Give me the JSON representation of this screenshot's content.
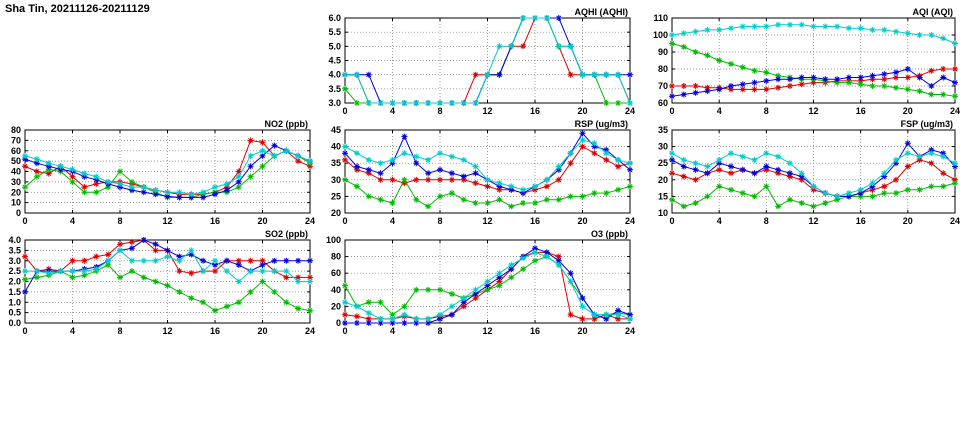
{
  "page": {
    "title": "Sha Tin, 20211126-20211129"
  },
  "colors": {
    "red": "#dd0000",
    "green": "#00bb00",
    "blue": "#0000dd",
    "cyan": "#00cccc"
  },
  "chart_data": [
    {
      "id": "aqhi",
      "type": "line",
      "title": "AQHI (AQHI)",
      "xlim": [
        0,
        24
      ],
      "ylim": [
        3.0,
        6.0
      ],
      "x_ticks": [
        "0",
        "4",
        "8",
        "12",
        "16",
        "20",
        "24"
      ],
      "y_ticks": [
        "3.0",
        "3.5",
        "4.0",
        "4.5",
        "5.0",
        "5.5",
        "6.0"
      ],
      "x": [
        0,
        1,
        2,
        3,
        4,
        5,
        6,
        7,
        8,
        9,
        10,
        11,
        12,
        13,
        14,
        15,
        16,
        17,
        18,
        19,
        20,
        21,
        22,
        23,
        24
      ],
      "series": [
        {
          "name": "red",
          "values": [
            4,
            4,
            3,
            3,
            3,
            3,
            3,
            3,
            3,
            3,
            3,
            4,
            4,
            4,
            5,
            5,
            6,
            6,
            5,
            4,
            4,
            4,
            4,
            4,
            3
          ]
        },
        {
          "name": "green",
          "values": [
            3.5,
            3,
            3,
            3,
            3,
            3,
            3,
            3,
            3,
            3,
            3,
            3,
            4,
            4,
            5,
            6,
            6,
            6,
            5,
            5,
            4,
            4,
            3,
            3,
            3
          ]
        },
        {
          "name": "blue",
          "values": [
            4,
            4,
            4,
            3,
            3,
            3,
            3,
            3,
            3,
            3,
            3,
            3,
            4,
            4,
            5,
            6,
            6,
            6,
            6,
            5,
            4,
            4,
            4,
            4,
            4
          ]
        },
        {
          "name": "cyan",
          "values": [
            4,
            4,
            3,
            3,
            3,
            3,
            3,
            3,
            3,
            3,
            3,
            3,
            4,
            5,
            5,
            6,
            6,
            6,
            5,
            5,
            4,
            4,
            4,
            4,
            3
          ]
        }
      ]
    },
    {
      "id": "aqi",
      "type": "line",
      "title": "AQI (AQI)",
      "xlim": [
        0,
        24
      ],
      "ylim": [
        60,
        110
      ],
      "x_ticks": [
        "0",
        "4",
        "8",
        "12",
        "16",
        "20",
        "24"
      ],
      "y_ticks": [
        "60",
        "70",
        "80",
        "90",
        "100",
        "110"
      ],
      "x": [
        0,
        1,
        2,
        3,
        4,
        5,
        6,
        7,
        8,
        9,
        10,
        11,
        12,
        13,
        14,
        15,
        16,
        17,
        18,
        19,
        20,
        21,
        22,
        23,
        24
      ],
      "series": [
        {
          "name": "red",
          "values": [
            70,
            70,
            70,
            69,
            69,
            68,
            68,
            68,
            68,
            69,
            70,
            71,
            72,
            72,
            73,
            73,
            73,
            74,
            74,
            75,
            75,
            76,
            79,
            80,
            80
          ]
        },
        {
          "name": "green",
          "values": [
            95,
            93,
            90,
            88,
            85,
            83,
            81,
            79,
            78,
            76,
            75,
            74,
            74,
            73,
            72,
            72,
            71,
            70,
            70,
            69,
            68,
            67,
            65,
            65,
            64
          ]
        },
        {
          "name": "blue",
          "values": [
            64,
            65,
            66,
            67,
            68,
            70,
            71,
            72,
            73,
            74,
            74,
            75,
            75,
            74,
            74,
            75,
            75,
            76,
            77,
            78,
            80,
            75,
            70,
            75,
            72
          ]
        },
        {
          "name": "cyan",
          "values": [
            100,
            101,
            102,
            103,
            103,
            104,
            105,
            105,
            105,
            106,
            106,
            106,
            105,
            105,
            105,
            104,
            104,
            103,
            103,
            102,
            101,
            100,
            100,
            98,
            95
          ]
        }
      ]
    },
    {
      "id": "no2",
      "type": "line",
      "title": "NO2 (ppb)",
      "xlim": [
        0,
        24
      ],
      "ylim": [
        0,
        80
      ],
      "x_ticks": [
        "0",
        "4",
        "8",
        "12",
        "16",
        "20",
        "24"
      ],
      "y_ticks": [
        "0",
        "10",
        "20",
        "30",
        "40",
        "50",
        "60",
        "70",
        "80"
      ],
      "x": [
        0,
        1,
        2,
        3,
        4,
        5,
        6,
        7,
        8,
        9,
        10,
        11,
        12,
        13,
        14,
        15,
        16,
        17,
        18,
        19,
        20,
        21,
        22,
        23,
        24
      ],
      "series": [
        {
          "name": "red",
          "values": [
            45,
            40,
            38,
            45,
            35,
            25,
            28,
            30,
            30,
            28,
            25,
            22,
            20,
            18,
            18,
            18,
            20,
            25,
            40,
            70,
            68,
            55,
            60,
            50,
            45
          ]
        },
        {
          "name": "green",
          "values": [
            25,
            35,
            42,
            40,
            30,
            20,
            20,
            25,
            40,
            30,
            25,
            20,
            15,
            15,
            15,
            18,
            20,
            20,
            25,
            35,
            45,
            55,
            60,
            55,
            48
          ]
        },
        {
          "name": "blue",
          "values": [
            52,
            48,
            45,
            42,
            40,
            35,
            32,
            28,
            25,
            22,
            20,
            18,
            16,
            15,
            15,
            15,
            18,
            22,
            30,
            45,
            55,
            65,
            60,
            55,
            50
          ]
        },
        {
          "name": "cyan",
          "values": [
            55,
            52,
            48,
            45,
            42,
            38,
            35,
            30,
            28,
            25,
            25,
            22,
            20,
            20,
            18,
            20,
            25,
            28,
            35,
            55,
            60,
            55,
            60,
            55,
            50
          ]
        }
      ]
    },
    {
      "id": "rsp",
      "type": "line",
      "title": "RSP (ug/m3)",
      "xlim": [
        0,
        24
      ],
      "ylim": [
        20,
        45
      ],
      "x_ticks": [
        "0",
        "4",
        "8",
        "12",
        "16",
        "20",
        "24"
      ],
      "y_ticks": [
        "20",
        "25",
        "30",
        "35",
        "40",
        "45"
      ],
      "x": [
        0,
        1,
        2,
        3,
        4,
        5,
        6,
        7,
        8,
        9,
        10,
        11,
        12,
        13,
        14,
        15,
        16,
        17,
        18,
        19,
        20,
        21,
        22,
        23,
        24
      ],
      "series": [
        {
          "name": "red",
          "values": [
            36,
            33,
            32,
            30,
            30,
            29,
            30,
            30,
            30,
            30,
            30,
            29,
            28,
            27,
            27,
            26,
            27,
            28,
            30,
            35,
            40,
            38,
            36,
            34,
            35
          ]
        },
        {
          "name": "green",
          "values": [
            30,
            28,
            25,
            24,
            23,
            30,
            24,
            22,
            25,
            26,
            24,
            23,
            23,
            24,
            22,
            23,
            23,
            24,
            24,
            25,
            25,
            26,
            26,
            27,
            28
          ]
        },
        {
          "name": "blue",
          "values": [
            38,
            34,
            33,
            32,
            35,
            43,
            35,
            32,
            33,
            32,
            31,
            32,
            30,
            28,
            27,
            26,
            28,
            30,
            33,
            38,
            44,
            40,
            39,
            36,
            33
          ]
        },
        {
          "name": "cyan",
          "values": [
            40,
            38,
            36,
            35,
            36,
            38,
            37,
            36,
            38,
            37,
            36,
            34,
            30,
            29,
            28,
            27,
            28,
            30,
            34,
            38,
            42,
            41,
            38,
            36,
            35
          ]
        }
      ]
    },
    {
      "id": "fsp",
      "type": "line",
      "title": "FSP (ug/m3)",
      "xlim": [
        0,
        24
      ],
      "ylim": [
        10,
        35
      ],
      "x_ticks": [
        "0",
        "4",
        "8",
        "12",
        "16",
        "20",
        "24"
      ],
      "y_ticks": [
        "10",
        "15",
        "20",
        "25",
        "30",
        "35"
      ],
      "x": [
        0,
        1,
        2,
        3,
        4,
        5,
        6,
        7,
        8,
        9,
        10,
        11,
        12,
        13,
        14,
        15,
        16,
        17,
        18,
        19,
        20,
        21,
        22,
        23,
        24
      ],
      "series": [
        {
          "name": "red",
          "values": [
            22,
            21,
            20,
            22,
            23,
            22,
            23,
            22,
            23,
            22,
            21,
            20,
            17,
            16,
            15,
            15,
            16,
            17,
            18,
            20,
            24,
            26,
            25,
            22,
            20
          ]
        },
        {
          "name": "green",
          "values": [
            14,
            12,
            13,
            15,
            18,
            17,
            16,
            15,
            18,
            12,
            14,
            13,
            12,
            13,
            14,
            15,
            15,
            15,
            16,
            16,
            17,
            17,
            18,
            18,
            19
          ]
        },
        {
          "name": "blue",
          "values": [
            26,
            24,
            23,
            22,
            25,
            24,
            23,
            22,
            24,
            23,
            22,
            21,
            18,
            16,
            15,
            15,
            16,
            18,
            21,
            25,
            31,
            27,
            29,
            28,
            24
          ]
        },
        {
          "name": "cyan",
          "values": [
            28,
            26,
            25,
            24,
            26,
            28,
            27,
            26,
            28,
            27,
            25,
            22,
            18,
            16,
            15,
            16,
            17,
            19,
            22,
            26,
            28,
            27,
            28,
            27,
            25
          ]
        }
      ]
    },
    {
      "id": "so2",
      "type": "line",
      "title": "SO2 (ppb)",
      "xlim": [
        0,
        24
      ],
      "ylim": [
        0.0,
        4.0
      ],
      "x_ticks": [
        "0",
        "4",
        "8",
        "12",
        "16",
        "20",
        "24"
      ],
      "y_ticks": [
        "0.0",
        "0.5",
        "1.0",
        "1.5",
        "2.0",
        "2.5",
        "3.0",
        "3.5",
        "4.0"
      ],
      "x": [
        0,
        1,
        2,
        3,
        4,
        5,
        6,
        7,
        8,
        9,
        10,
        11,
        12,
        13,
        14,
        15,
        16,
        17,
        18,
        19,
        20,
        21,
        22,
        23,
        24
      ],
      "series": [
        {
          "name": "red",
          "values": [
            3.2,
            2.5,
            2.6,
            2.5,
            3.0,
            3.0,
            3.2,
            3.3,
            3.8,
            3.9,
            4.0,
            3.5,
            3.5,
            2.5,
            2.4,
            2.5,
            2.5,
            3.0,
            3.0,
            3.0,
            3.0,
            2.5,
            2.2,
            2.2,
            2.2
          ]
        },
        {
          "name": "green",
          "values": [
            2.1,
            2.2,
            2.3,
            2.5,
            2.2,
            2.3,
            2.5,
            2.8,
            2.2,
            2.5,
            2.2,
            2.0,
            1.8,
            1.5,
            1.2,
            1.0,
            0.6,
            0.8,
            1.0,
            1.5,
            2.0,
            1.5,
            1.0,
            0.7,
            0.6
          ]
        },
        {
          "name": "blue",
          "values": [
            1.5,
            2.5,
            2.5,
            2.5,
            2.5,
            2.6,
            2.7,
            3.0,
            3.5,
            3.6,
            4.0,
            3.8,
            3.5,
            3.2,
            3.3,
            3.0,
            2.8,
            3.0,
            2.8,
            2.5,
            2.8,
            3.0,
            3.0,
            3.0,
            3.0
          ]
        },
        {
          "name": "cyan",
          "values": [
            2.5,
            2.5,
            2.4,
            2.5,
            2.5,
            2.5,
            2.6,
            3.0,
            3.5,
            3.0,
            3.0,
            3.0,
            3.2,
            3.0,
            3.5,
            2.5,
            3.0,
            2.5,
            2.0,
            2.5,
            2.5,
            2.5,
            2.5,
            2.0,
            2.0
          ]
        }
      ]
    },
    {
      "id": "o3",
      "type": "line",
      "title": "O3 (ppb)",
      "xlim": [
        0,
        24
      ],
      "ylim": [
        0,
        100
      ],
      "x_ticks": [
        "0",
        "4",
        "8",
        "12",
        "16",
        "20",
        "24"
      ],
      "y_ticks": [
        "0",
        "20",
        "40",
        "60",
        "80",
        "100"
      ],
      "x": [
        0,
        1,
        2,
        3,
        4,
        5,
        6,
        7,
        8,
        9,
        10,
        11,
        12,
        13,
        14,
        15,
        16,
        17,
        18,
        19,
        20,
        21,
        22,
        23,
        24
      ],
      "series": [
        {
          "name": "red",
          "values": [
            10,
            8,
            5,
            5,
            5,
            8,
            5,
            5,
            8,
            10,
            20,
            30,
            40,
            50,
            65,
            80,
            85,
            85,
            80,
            10,
            5,
            5,
            10,
            5,
            5
          ]
        },
        {
          "name": "green",
          "values": [
            45,
            20,
            25,
            25,
            10,
            20,
            40,
            40,
            40,
            35,
            30,
            35,
            40,
            45,
            55,
            65,
            75,
            80,
            70,
            50,
            30,
            10,
            10,
            12,
            10
          ]
        },
        {
          "name": "blue",
          "values": [
            0,
            0,
            0,
            0,
            0,
            0,
            0,
            0,
            5,
            10,
            25,
            35,
            45,
            55,
            65,
            80,
            90,
            85,
            75,
            60,
            30,
            10,
            5,
            15,
            10
          ]
        },
        {
          "name": "cyan",
          "values": [
            25,
            20,
            12,
            5,
            5,
            10,
            5,
            5,
            10,
            20,
            30,
            40,
            50,
            60,
            70,
            78,
            85,
            80,
            70,
            50,
            20,
            10,
            10,
            10,
            5
          ]
        }
      ]
    }
  ]
}
